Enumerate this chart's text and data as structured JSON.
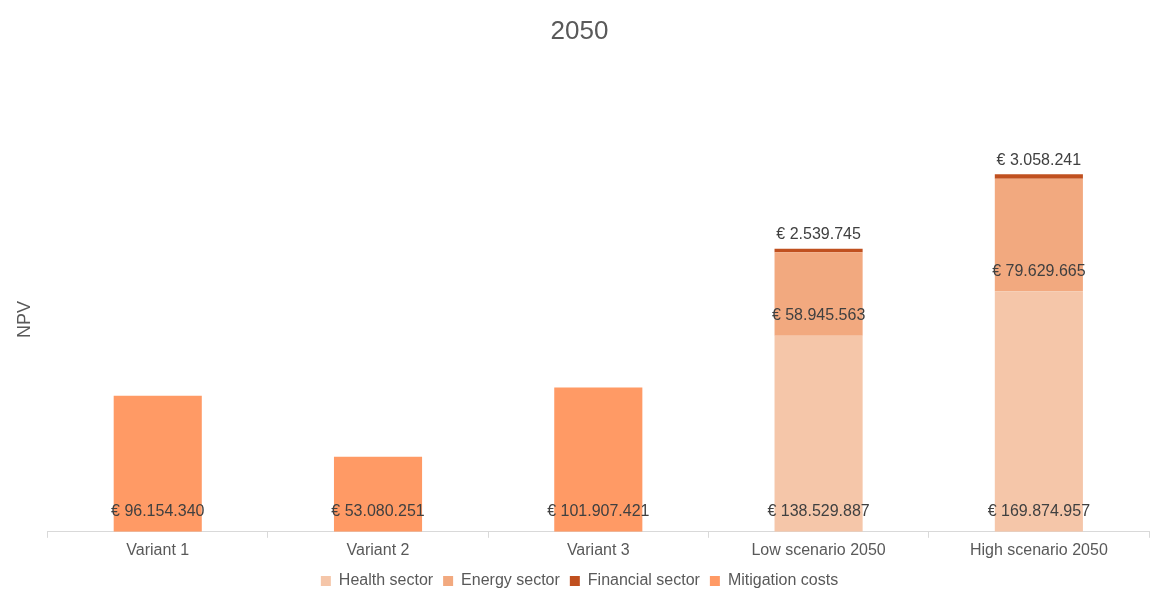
{
  "chart_data": {
    "type": "bar",
    "title": "2050",
    "ylabel": "NPV",
    "stacked": true,
    "legend": "bottom",
    "grid": false,
    "categories": [
      "Variant 1",
      "Variant 2",
      "Variant 3",
      "Low scenario 2050",
      "High scenario 2050"
    ],
    "series": [
      {
        "name": "Health sector",
        "color": "#f5c6a9",
        "values": [
          null,
          null,
          null,
          138529887,
          169874957
        ],
        "value_labels": [
          null,
          null,
          null,
          "€ 138.529.887",
          "€ 169.874.957"
        ]
      },
      {
        "name": "Energy sector",
        "color": "#f2a97f",
        "values": [
          null,
          null,
          null,
          58945563,
          79629665
        ],
        "value_labels": [
          null,
          null,
          null,
          "€ 58.945.563",
          "€ 79.629.665"
        ]
      },
      {
        "name": "Financial sector",
        "color": "#c0501f",
        "values": [
          null,
          null,
          null,
          2539745,
          3058241
        ],
        "value_labels": [
          null,
          null,
          null,
          "€ 2.539.745",
          "€ 3.058.241"
        ]
      },
      {
        "name": "Mitigation costs",
        "color": "#ff9a65",
        "values": [
          96154340,
          53080251,
          101907421,
          null,
          null
        ],
        "value_labels": [
          "€ 96.154.340",
          "€ 53.080.251",
          "€ 101.907.421",
          null,
          null
        ]
      }
    ]
  }
}
